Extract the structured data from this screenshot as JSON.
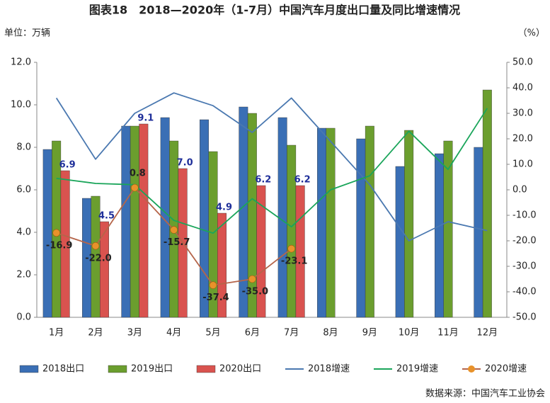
{
  "chart_data": {
    "type": "bar",
    "title": "图表18　2018—2020年（1-7月）中国汽车月度出口量及同比增速情况",
    "y_label": "单位：万辆",
    "y2_label": "（%）",
    "source": "数据来源：中国汽车工业协会",
    "categories": [
      "1月",
      "2月",
      "3月",
      "4月",
      "5月",
      "6月",
      "7月",
      "8月",
      "9月",
      "10月",
      "11月",
      "12月"
    ],
    "ylim": [
      0,
      12
    ],
    "yticks": [
      {
        "value": 0,
        "label": "0.0"
      },
      {
        "value": 2,
        "label": "2.0"
      },
      {
        "value": 4,
        "label": "4.0"
      },
      {
        "value": 6,
        "label": "6.0"
      },
      {
        "value": 8,
        "label": "8.0"
      },
      {
        "value": 10,
        "label": "10.0"
      },
      {
        "value": 12,
        "label": "12.0"
      }
    ],
    "y2lim": [
      -50,
      50
    ],
    "y2ticks": [
      {
        "value": -50,
        "label": "-50.0"
      },
      {
        "value": -40,
        "label": "-40.0"
      },
      {
        "value": -30,
        "label": "-30.0"
      },
      {
        "value": -20,
        "label": "-20.0"
      },
      {
        "value": -10,
        "label": "-10.0"
      },
      {
        "value": 0,
        "label": "0.0"
      },
      {
        "value": 10,
        "label": "10.0"
      },
      {
        "value": 20,
        "label": "20.0"
      },
      {
        "value": 30,
        "label": "30.0"
      },
      {
        "value": 40,
        "label": "40.0"
      },
      {
        "value": 50,
        "label": "50.0"
      }
    ],
    "grid": false,
    "series": [
      {
        "name": "2018出口",
        "type": "bar",
        "color": "#3a6fb5",
        "values": [
          7.9,
          5.6,
          9.0,
          9.4,
          9.3,
          9.9,
          9.4,
          8.9,
          8.4,
          7.1,
          7.7,
          8.0
        ]
      },
      {
        "name": "2019出口",
        "type": "bar",
        "color": "#6b9e2e",
        "values": [
          8.3,
          5.7,
          9.0,
          8.3,
          7.8,
          9.6,
          8.1,
          8.9,
          9.0,
          8.8,
          8.3,
          10.7
        ]
      },
      {
        "name": "2020出口",
        "type": "bar",
        "color": "#d9534f",
        "values": [
          6.9,
          4.5,
          9.1,
          7.0,
          4.9,
          6.2,
          6.2,
          null,
          null,
          null,
          null,
          null
        ],
        "value_labels": [
          "6.9",
          "4.5",
          "9.1",
          "7.0",
          "4.9",
          "6.2",
          "6.2",
          null,
          null,
          null,
          null,
          null
        ]
      },
      {
        "name": "2018增速",
        "type": "line",
        "axis": "y2",
        "color": "#4a78b0",
        "values": [
          36,
          12,
          30,
          38,
          33,
          22.5,
          36,
          19,
          2,
          -20,
          -12.5,
          -16
        ]
      },
      {
        "name": "2019增速",
        "type": "line",
        "axis": "y2",
        "color": "#1aa55a",
        "values": [
          4.5,
          2.5,
          2,
          -12,
          -17,
          -3.5,
          -14.5,
          0,
          5.5,
          23,
          8,
          32
        ]
      },
      {
        "name": "2020增速",
        "type": "line",
        "axis": "y2",
        "color": "#b5654a",
        "marker_color": "#e8922a",
        "values": [
          -16.9,
          -22.0,
          0.8,
          -15.7,
          -37.4,
          -35.0,
          -23.1,
          null,
          null,
          null,
          null,
          null
        ],
        "value_labels": [
          "-16.9",
          "-22.0",
          "0.8",
          "-15.7",
          "-37.4",
          "-35.0",
          "-23.1",
          null,
          null,
          null,
          null,
          null
        ]
      }
    ]
  }
}
